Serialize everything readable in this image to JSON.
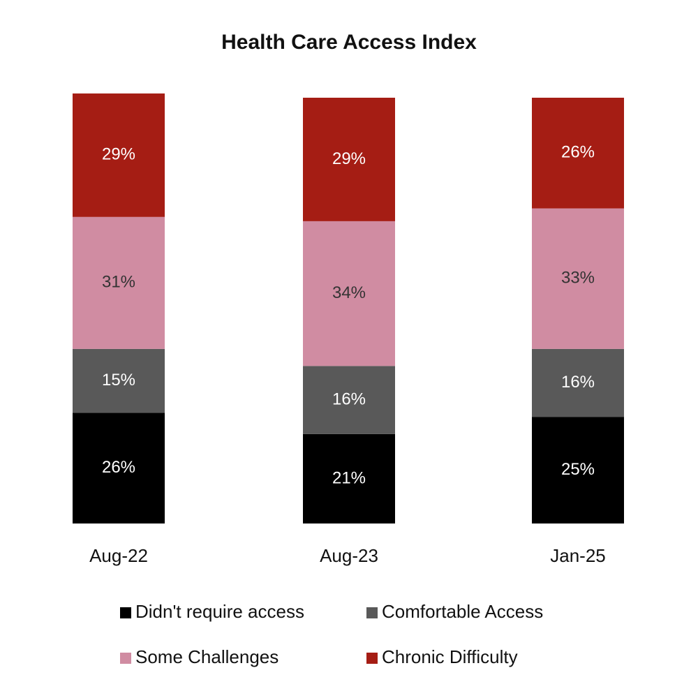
{
  "chart_data": {
    "type": "stacked_bar",
    "title": "Health Care Access Index",
    "categories": [
      "Aug-22",
      "Aug-23",
      "Jan-25"
    ],
    "series": [
      {
        "name": "Didn't require access",
        "color": "#000000",
        "values": [
          26,
          21,
          25
        ],
        "value_labels": [
          "26%",
          "21%",
          "25%"
        ]
      },
      {
        "name": "Comfortable Access",
        "color": "#595959",
        "values": [
          15,
          16,
          16
        ],
        "value_labels": [
          "15%",
          "16%",
          "16%"
        ]
      },
      {
        "name": "Some Challenges",
        "color": "#d08ca2",
        "values": [
          31,
          34,
          33
        ],
        "value_labels": [
          "31%",
          "34%",
          "33%"
        ]
      },
      {
        "name": "Chronic Difficulty",
        "color": "#a51d14",
        "values": [
          29,
          29,
          26
        ],
        "value_labels": [
          "29%",
          "29%",
          "26%"
        ]
      }
    ]
  }
}
